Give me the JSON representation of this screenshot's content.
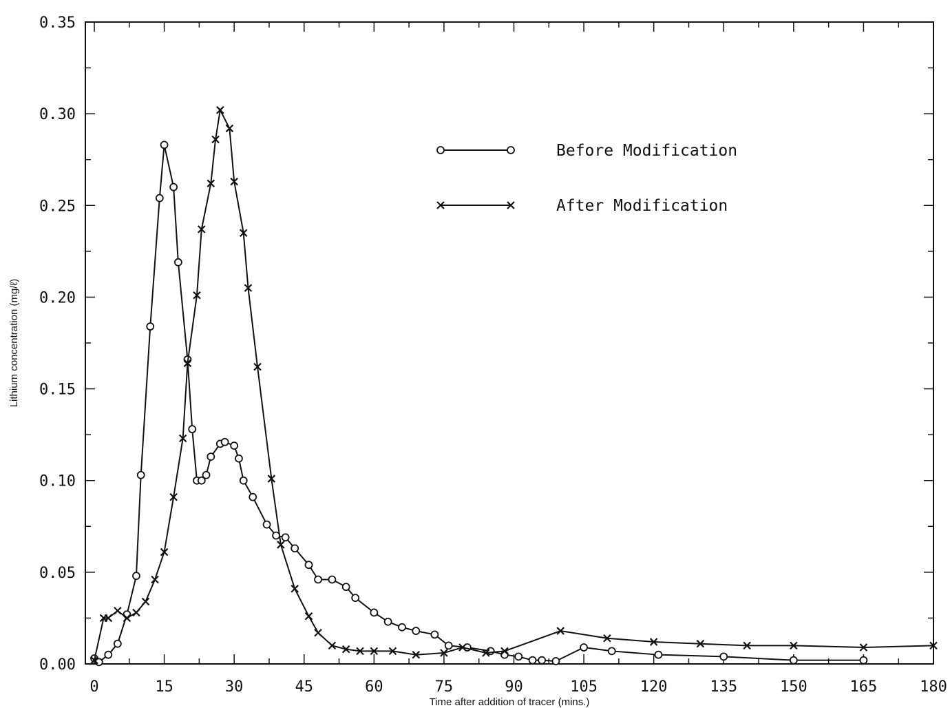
{
  "chart_data": {
    "type": "line",
    "xlabel": "Time after addition of tracer (mins.)",
    "ylabel": "Lithium concentration (mg/ℓ)",
    "xlim": [
      0,
      180
    ],
    "ylim": [
      0,
      0.35
    ],
    "xticks": [
      0,
      15,
      30,
      45,
      60,
      75,
      90,
      105,
      120,
      135,
      150,
      165,
      180
    ],
    "yticks": [
      "0.00",
      "0.05",
      "0.10",
      "0.15",
      "0.20",
      "0.25",
      "0.30",
      "0.35"
    ],
    "legend": {
      "placement": "upper-middle-right"
    },
    "series": [
      {
        "name": "Before Modification",
        "marker": "circle",
        "x": [
          0,
          1,
          3,
          5,
          7,
          9,
          10,
          12,
          14,
          15,
          17,
          18,
          20,
          21,
          22,
          23,
          24,
          25,
          27,
          28,
          30,
          31,
          32,
          34,
          37,
          39,
          41,
          43,
          46,
          48,
          51,
          54,
          56,
          60,
          63,
          66,
          69,
          73,
          76,
          80,
          85,
          88,
          91,
          94,
          96,
          99,
          105,
          111,
          121,
          135,
          150,
          165
        ],
        "y": [
          0.003,
          0.001,
          0.005,
          0.011,
          0.027,
          0.048,
          0.103,
          0.184,
          0.254,
          0.283,
          0.26,
          0.219,
          0.166,
          0.128,
          0.1,
          0.1,
          0.103,
          0.113,
          0.12,
          0.121,
          0.119,
          0.112,
          0.1,
          0.091,
          0.076,
          0.07,
          0.069,
          0.063,
          0.054,
          0.046,
          0.046,
          0.042,
          0.036,
          0.028,
          0.023,
          0.02,
          0.018,
          0.016,
          0.01,
          0.009,
          0.007,
          0.005,
          0.004,
          0.002,
          0.002,
          0.0015,
          0.009,
          0.007,
          0.005,
          0.004,
          0.002,
          0.002
        ],
        "x_fix": "unused"
      },
      {
        "name": "After Modification",
        "marker": "x",
        "x": [
          0,
          2,
          3,
          5,
          7,
          9,
          11,
          13,
          15,
          17,
          19,
          20,
          22,
          23,
          25,
          26,
          27,
          29,
          30,
          32,
          33,
          35,
          38,
          40,
          43,
          46,
          48,
          51,
          54,
          57,
          60,
          64,
          69,
          75,
          79,
          84,
          88,
          100,
          110,
          120,
          130,
          140,
          150,
          165,
          180
        ],
        "y": [
          0.002,
          0.025,
          0.025,
          0.029,
          0.025,
          0.028,
          0.034,
          0.046,
          0.061,
          0.091,
          0.123,
          0.164,
          0.201,
          0.237,
          0.262,
          0.286,
          0.302,
          0.292,
          0.263,
          0.235,
          0.205,
          0.162,
          0.101,
          0.065,
          0.041,
          0.026,
          0.017,
          0.01,
          0.008,
          0.007,
          0.007,
          0.007,
          0.005,
          0.006,
          0.009,
          0.006,
          0.007,
          0.018,
          0.014,
          0.012,
          0.011,
          0.01,
          0.01,
          0.009,
          0.01
        ]
      }
    ]
  }
}
